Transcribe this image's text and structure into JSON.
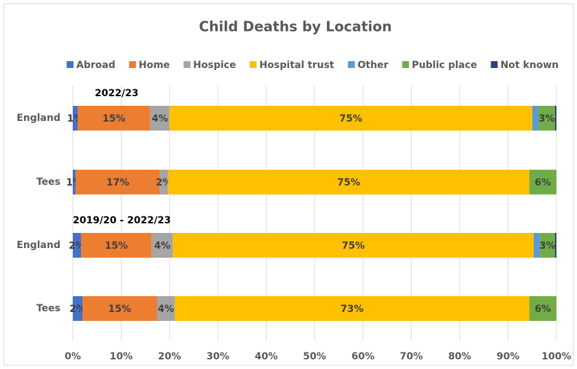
{
  "chart_data": {
    "type": "stacked_bar_horizontal",
    "title": "Child Deaths by Location",
    "categories": [
      "England",
      "Tees",
      "England",
      "Tees"
    ],
    "group_labels": [
      "2022/23",
      null,
      "2019/20 - 2022/23",
      null
    ],
    "series": [
      {
        "name": "Abroad",
        "color": "#4472c4",
        "values": [
          1,
          0.6,
          1.7,
          2.0
        ],
        "value_labels": [
          "1%",
          "1%",
          "2%",
          "2%"
        ]
      },
      {
        "name": "Home",
        "color": "#ed7d31",
        "values": [
          15,
          17.4,
          14.6,
          15.4
        ],
        "value_labels": [
          "15%",
          "17%",
          "15%",
          "15%"
        ]
      },
      {
        "name": "Hospice",
        "color": "#a5a5a5",
        "values": [
          4,
          1.7,
          4.4,
          3.7
        ],
        "value_labels": [
          "4%",
          "2%",
          "4%",
          "4%"
        ]
      },
      {
        "name": "Hospital trust",
        "color": "#ffc000",
        "values": [
          75,
          74.7,
          74.6,
          73.3
        ],
        "value_labels": [
          "75%",
          "75%",
          "75%",
          "73%"
        ]
      },
      {
        "name": "Other",
        "color": "#5b9bd5",
        "values": [
          1.3,
          0,
          1.3,
          0
        ],
        "value_labels": [
          null,
          null,
          null,
          null
        ]
      },
      {
        "name": "Public place",
        "color": "#70ad47",
        "values": [
          3.4,
          5.6,
          3.1,
          5.6
        ],
        "value_labels": [
          "3%",
          "6%",
          "3%",
          "6%"
        ]
      },
      {
        "name": "Not known",
        "color": "#264478",
        "values": [
          0.3,
          0,
          0.3,
          0
        ],
        "value_labels": [
          null,
          null,
          null,
          null
        ]
      }
    ],
    "xlim": [
      0,
      100
    ],
    "xticks": [
      {
        "value": 0,
        "label": "0%"
      },
      {
        "value": 10,
        "label": "10%"
      },
      {
        "value": 20,
        "label": "20%"
      },
      {
        "value": 30,
        "label": "30%"
      },
      {
        "value": 40,
        "label": "40%"
      },
      {
        "value": 50,
        "label": "50%"
      },
      {
        "value": 60,
        "label": "60%"
      },
      {
        "value": 70,
        "label": "70%"
      },
      {
        "value": 80,
        "label": "80%"
      },
      {
        "value": 90,
        "label": "90%"
      },
      {
        "value": 100,
        "label": "100%"
      }
    ],
    "grid": true,
    "legend": "top"
  }
}
